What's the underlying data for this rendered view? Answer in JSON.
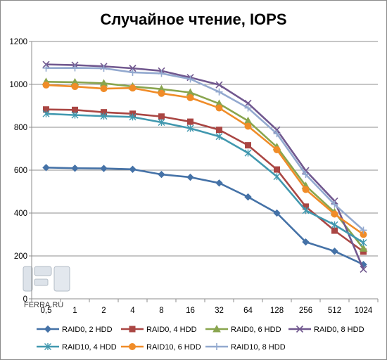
{
  "chart_data": {
    "type": "line",
    "title": "Случайное чтение, IOPS",
    "xlabel": "",
    "ylabel": "",
    "categories": [
      "0,5",
      "1",
      "2",
      "4",
      "8",
      "16",
      "32",
      "64",
      "128",
      "256",
      "512",
      "1024"
    ],
    "ylim": [
      0,
      1200
    ],
    "yticks": [
      0,
      200,
      400,
      600,
      800,
      1000,
      1200
    ],
    "grid": "horizontal",
    "legend_position": "bottom",
    "series": [
      {
        "name": "RAID0, 2 HDD",
        "color": "#4572a7",
        "marker": "diamond",
        "values": [
          612,
          609,
          608,
          604,
          580,
          567,
          540,
          475,
          400,
          265,
          222,
          160
        ]
      },
      {
        "name": "RAID0, 4 HDD",
        "color": "#aa4643",
        "marker": "square",
        "values": [
          883,
          881,
          870,
          863,
          850,
          826,
          788,
          716,
          603,
          430,
          318,
          220
        ]
      },
      {
        "name": "RAID0, 6 HDD",
        "color": "#89a54e",
        "marker": "triangle",
        "values": [
          1012,
          1010,
          1005,
          990,
          978,
          962,
          910,
          830,
          708,
          527,
          404,
          235
        ]
      },
      {
        "name": "RAID0, 8 HDD",
        "color": "#71588f",
        "marker": "x",
        "values": [
          1093,
          1090,
          1084,
          1075,
          1063,
          1032,
          998,
          912,
          788,
          598,
          456,
          138
        ]
      },
      {
        "name": "RAID10, 4 HDD",
        "color": "#4198af",
        "marker": "star",
        "values": [
          863,
          857,
          852,
          848,
          823,
          795,
          757,
          680,
          570,
          412,
          345,
          262
        ]
      },
      {
        "name": "RAID10, 6 HDD",
        "color": "#f08c28",
        "marker": "circle",
        "values": [
          997,
          990,
          980,
          983,
          958,
          938,
          890,
          805,
          695,
          510,
          395,
          300
        ]
      },
      {
        "name": "RAID10, 8 HDD",
        "color": "#93a9cf",
        "marker": "plus",
        "values": [
          1076,
          1077,
          1075,
          1056,
          1051,
          1025,
          965,
          890,
          770,
          580,
          440,
          320
        ]
      }
    ]
  },
  "watermark": {
    "text": "FERRA.RU"
  }
}
